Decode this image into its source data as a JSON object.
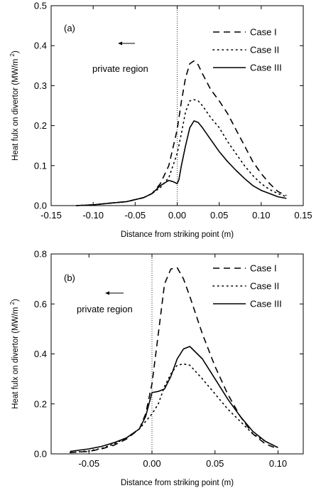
{
  "chart_data": [
    {
      "type": "line",
      "panel_label": "(a)",
      "xlabel": "Distance from striking point (m)",
      "ylabel": "Heat fulx on divertor (MW/m",
      "ylabel_sup": "2",
      "ylabel_close": ")",
      "xlim": [
        -0.15,
        0.15
      ],
      "ylim": [
        0,
        0.5
      ],
      "xticks": [
        -0.15,
        -0.1,
        -0.05,
        0.0,
        0.05,
        0.1,
        0.15
      ],
      "xtick_labels": [
        "-0.15",
        "-0.10",
        "-0.05",
        "0.00",
        "0.05",
        "0.10",
        "0.15"
      ],
      "yticks": [
        0,
        0.1,
        0.2,
        0.3,
        0.4,
        0.5
      ],
      "ytick_labels": [
        "0.0",
        "0.1",
        "0.2",
        "0.3",
        "0.4",
        "0.5"
      ],
      "vline_x": 0,
      "annotation": "private region",
      "arrow": "←",
      "legend_position": "top-right",
      "series": [
        {
          "name": "Case I",
          "dash": "9,6",
          "x": [
            -0.12,
            -0.1,
            -0.08,
            -0.06,
            -0.04,
            -0.03,
            -0.02,
            -0.01,
            0.0,
            0.005,
            0.01,
            0.015,
            0.02,
            0.025,
            0.03,
            0.04,
            0.05,
            0.06,
            0.07,
            0.08,
            0.09,
            0.1,
            0.11,
            0.12,
            0.13
          ],
          "y": [
            0.0,
            0.002,
            0.006,
            0.01,
            0.02,
            0.03,
            0.055,
            0.1,
            0.19,
            0.26,
            0.32,
            0.355,
            0.362,
            0.352,
            0.33,
            0.29,
            0.262,
            0.23,
            0.19,
            0.15,
            0.11,
            0.08,
            0.055,
            0.035,
            0.025
          ]
        },
        {
          "name": "Case II",
          "dash": "1.5,5",
          "x": [
            -0.12,
            -0.1,
            -0.08,
            -0.06,
            -0.04,
            -0.03,
            -0.02,
            -0.01,
            0.0,
            0.005,
            0.01,
            0.015,
            0.02,
            0.025,
            0.03,
            0.04,
            0.05,
            0.06,
            0.07,
            0.08,
            0.09,
            0.1,
            0.11,
            0.12,
            0.13
          ],
          "y": [
            0.0,
            0.002,
            0.006,
            0.01,
            0.02,
            0.03,
            0.045,
            0.07,
            0.13,
            0.18,
            0.235,
            0.262,
            0.265,
            0.262,
            0.25,
            0.22,
            0.195,
            0.16,
            0.13,
            0.1,
            0.075,
            0.055,
            0.04,
            0.03,
            0.022
          ]
        },
        {
          "name": "Case III",
          "dash": "",
          "x": [
            -0.12,
            -0.1,
            -0.08,
            -0.06,
            -0.04,
            -0.03,
            -0.02,
            -0.01,
            -0.005,
            0.0,
            0.002,
            0.005,
            0.01,
            0.015,
            0.02,
            0.025,
            0.03,
            0.04,
            0.05,
            0.06,
            0.07,
            0.08,
            0.09,
            0.1,
            0.11,
            0.12,
            0.13
          ],
          "y": [
            0.0,
            0.002,
            0.006,
            0.01,
            0.02,
            0.03,
            0.05,
            0.063,
            0.06,
            0.055,
            0.065,
            0.1,
            0.15,
            0.195,
            0.212,
            0.208,
            0.195,
            0.165,
            0.135,
            0.11,
            0.088,
            0.068,
            0.05,
            0.038,
            0.03,
            0.022,
            0.018
          ]
        }
      ]
    },
    {
      "type": "line",
      "panel_label": "(b)",
      "xlabel": "Distance from striking point (m)",
      "ylabel": "Heat fulx on divertor (MW/m",
      "ylabel_sup": "2",
      "ylabel_close": ")",
      "xlim": [
        -0.08,
        0.12
      ],
      "ylim": [
        0,
        0.8
      ],
      "xticks": [
        -0.05,
        0.0,
        0.05,
        0.1
      ],
      "xtick_labels": [
        "-0.05",
        "0.00",
        "0.05",
        "0.10"
      ],
      "yticks": [
        0,
        0.2,
        0.4,
        0.6,
        0.8
      ],
      "ytick_labels": [
        "0.0",
        "0.2",
        "0.4",
        "0.6",
        "0.8"
      ],
      "vline_x": 0,
      "annotation": "private region",
      "arrow": "←",
      "legend_position": "top-right",
      "series": [
        {
          "name": "Case I",
          "dash": "9,6",
          "x": [
            -0.065,
            -0.05,
            -0.04,
            -0.03,
            -0.02,
            -0.01,
            -0.005,
            0.0,
            0.005,
            0.01,
            0.015,
            0.02,
            0.025,
            0.03,
            0.04,
            0.05,
            0.06,
            0.07,
            0.08,
            0.09,
            0.1
          ],
          "y": [
            0.005,
            0.01,
            0.02,
            0.035,
            0.06,
            0.1,
            0.16,
            0.28,
            0.48,
            0.68,
            0.74,
            0.745,
            0.7,
            0.63,
            0.48,
            0.35,
            0.24,
            0.15,
            0.08,
            0.04,
            0.02
          ]
        },
        {
          "name": "Case II",
          "dash": "1.5,5",
          "x": [
            -0.065,
            -0.05,
            -0.04,
            -0.03,
            -0.02,
            -0.01,
            -0.005,
            0.0,
            0.005,
            0.01,
            0.015,
            0.02,
            0.025,
            0.03,
            0.04,
            0.05,
            0.06,
            0.07,
            0.08,
            0.09,
            0.1
          ],
          "y": [
            0.005,
            0.012,
            0.022,
            0.04,
            0.065,
            0.1,
            0.13,
            0.16,
            0.2,
            0.27,
            0.32,
            0.355,
            0.36,
            0.355,
            0.3,
            0.24,
            0.18,
            0.13,
            0.08,
            0.05,
            0.025
          ]
        },
        {
          "name": "Case III",
          "dash": "",
          "x": [
            -0.065,
            -0.05,
            -0.04,
            -0.03,
            -0.02,
            -0.01,
            -0.005,
            0.0,
            0.005,
            0.01,
            0.015,
            0.02,
            0.025,
            0.03,
            0.04,
            0.05,
            0.06,
            0.07,
            0.08,
            0.09,
            0.1
          ],
          "y": [
            0.01,
            0.02,
            0.03,
            0.045,
            0.065,
            0.1,
            0.15,
            0.245,
            0.25,
            0.26,
            0.31,
            0.38,
            0.42,
            0.43,
            0.38,
            0.3,
            0.22,
            0.15,
            0.09,
            0.05,
            0.025
          ]
        }
      ]
    }
  ]
}
